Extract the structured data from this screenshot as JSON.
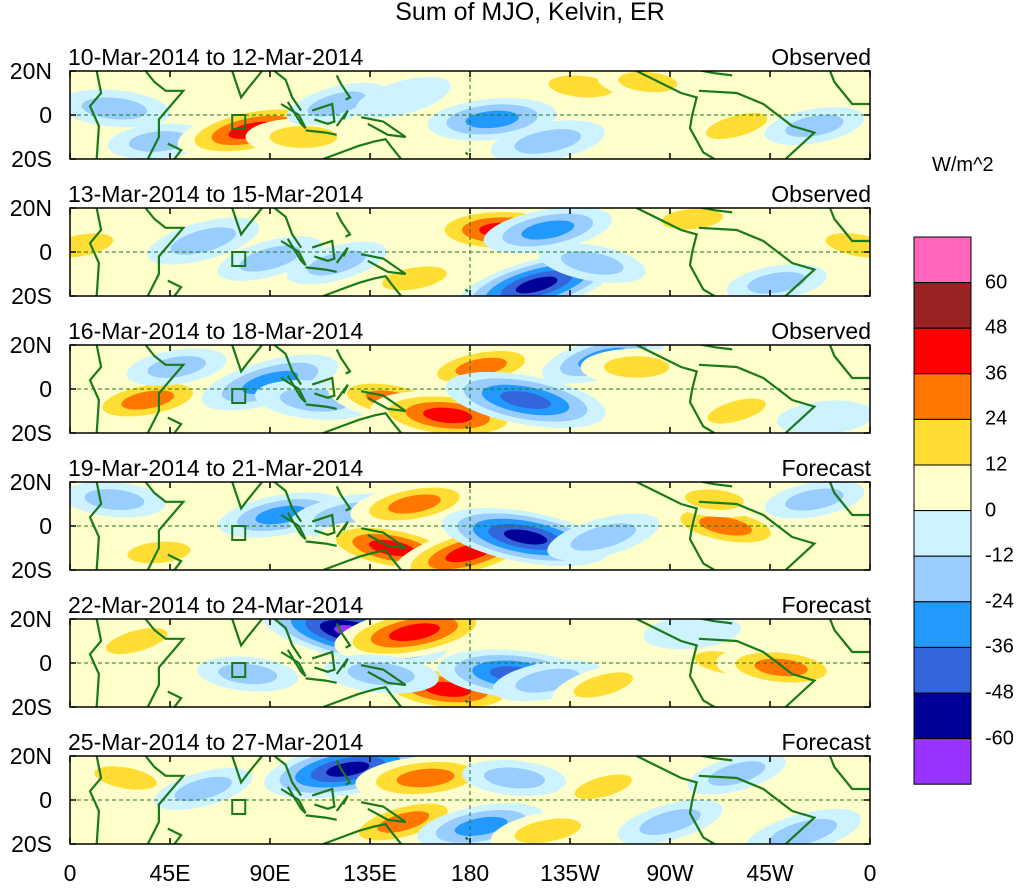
{
  "title": "Sum of MJO, Kelvin, ER",
  "units": "W/m^2",
  "colorbar": {
    "colors": [
      "#9933ff",
      "#000099",
      "#3366dd",
      "#2299ff",
      "#99ccff",
      "#ccf3ff",
      "#ffffcc",
      "#ffdd33",
      "#ff7700",
      "#ff0000",
      "#992222",
      "#ff66bb"
    ],
    "labels": [
      "-60",
      "-48",
      "-36",
      "-24",
      "-12",
      "0",
      "12",
      "24",
      "36",
      "48",
      "60"
    ]
  },
  "chart_data": {
    "type": "heatmap",
    "title": "Sum of MJO, Kelvin, ER",
    "colorbar_label": "W/m^2",
    "x_ticks": [
      "0",
      "45E",
      "90E",
      "135E",
      "180",
      "135W",
      "90W",
      "45W",
      "0"
    ],
    "y_ticks": [
      "20N",
      "0",
      "20S"
    ],
    "xlim": [
      0,
      360
    ],
    "ylim": [
      -20,
      20
    ],
    "levels": [
      -60,
      -48,
      -36,
      -24,
      -12,
      0,
      12,
      24,
      36,
      48,
      60
    ],
    "panels": [
      {
        "period": "10-Mar-2014 to 12-Mar-2014",
        "status": "Observed",
        "anomalies": [
          {
            "lon": 20,
            "lat": 3,
            "value": -20
          },
          {
            "lon": 40,
            "lat": -12,
            "value": -15
          },
          {
            "lon": 82,
            "lat": -7,
            "value": 42
          },
          {
            "lon": 105,
            "lat": -10,
            "value": 22
          },
          {
            "lon": 120,
            "lat": 5,
            "value": -15
          },
          {
            "lon": 150,
            "lat": 8,
            "value": -12
          },
          {
            "lon": 190,
            "lat": -2,
            "value": -30
          },
          {
            "lon": 215,
            "lat": -12,
            "value": -22
          },
          {
            "lon": 230,
            "lat": 13,
            "value": 20
          },
          {
            "lon": 260,
            "lat": 15,
            "value": 14
          },
          {
            "lon": 300,
            "lat": -5,
            "value": 18
          },
          {
            "lon": 335,
            "lat": -5,
            "value": -14
          }
        ]
      },
      {
        "period": "13-Mar-2014 to 15-Mar-2014",
        "status": "Observed",
        "anomalies": [
          {
            "lon": 5,
            "lat": 3,
            "value": 20
          },
          {
            "lon": 60,
            "lat": 5,
            "value": -22
          },
          {
            "lon": 90,
            "lat": -3,
            "value": -18
          },
          {
            "lon": 120,
            "lat": -5,
            "value": -15
          },
          {
            "lon": 155,
            "lat": -12,
            "value": 20
          },
          {
            "lon": 195,
            "lat": 10,
            "value": 42
          },
          {
            "lon": 215,
            "lat": 10,
            "value": -30
          },
          {
            "lon": 210,
            "lat": -15,
            "value": -50
          },
          {
            "lon": 235,
            "lat": -5,
            "value": -18
          },
          {
            "lon": 280,
            "lat": 15,
            "value": 16
          },
          {
            "lon": 318,
            "lat": -14,
            "value": -14
          },
          {
            "lon": 355,
            "lat": 3,
            "value": 22
          }
        ]
      },
      {
        "period": "16-Mar-2014 to 18-Mar-2014",
        "status": "Observed",
        "anomalies": [
          {
            "lon": 35,
            "lat": -5,
            "value": 30
          },
          {
            "lon": 48,
            "lat": 10,
            "value": -14
          },
          {
            "lon": 90,
            "lat": 3,
            "value": -36
          },
          {
            "lon": 110,
            "lat": -5,
            "value": -24
          },
          {
            "lon": 145,
            "lat": -5,
            "value": 30
          },
          {
            "lon": 170,
            "lat": -12,
            "value": 44
          },
          {
            "lon": 185,
            "lat": 10,
            "value": 28
          },
          {
            "lon": 205,
            "lat": -5,
            "value": -48
          },
          {
            "lon": 240,
            "lat": 14,
            "value": -28
          },
          {
            "lon": 255,
            "lat": 10,
            "value": 20
          },
          {
            "lon": 300,
            "lat": -10,
            "value": 15
          },
          {
            "lon": 340,
            "lat": -13,
            "value": -12
          }
        ]
      },
      {
        "period": "19-Mar-2014 to 21-Mar-2014",
        "status": "Forecast",
        "anomalies": [
          {
            "lon": 20,
            "lat": 12,
            "value": -15
          },
          {
            "lon": 40,
            "lat": -12,
            "value": 18
          },
          {
            "lon": 95,
            "lat": 5,
            "value": -28
          },
          {
            "lon": 125,
            "lat": 5,
            "value": -24
          },
          {
            "lon": 145,
            "lat": -10,
            "value": 40
          },
          {
            "lon": 155,
            "lat": 10,
            "value": 30
          },
          {
            "lon": 180,
            "lat": -12,
            "value": 46
          },
          {
            "lon": 205,
            "lat": -5,
            "value": -52
          },
          {
            "lon": 240,
            "lat": -5,
            "value": -22
          },
          {
            "lon": 295,
            "lat": 0,
            "value": 30
          },
          {
            "lon": 290,
            "lat": 12,
            "value": 14
          },
          {
            "lon": 335,
            "lat": 12,
            "value": -14
          }
        ]
      },
      {
        "period": "22-Mar-2014 to 24-Mar-2014",
        "status": "Forecast",
        "anomalies": [
          {
            "lon": 30,
            "lat": 10,
            "value": 18
          },
          {
            "lon": 80,
            "lat": -5,
            "value": -14
          },
          {
            "lon": 128,
            "lat": 14,
            "value": -62
          },
          {
            "lon": 155,
            "lat": 14,
            "value": 48
          },
          {
            "lon": 170,
            "lat": -12,
            "value": 40
          },
          {
            "lon": 140,
            "lat": -5,
            "value": -22
          },
          {
            "lon": 200,
            "lat": -5,
            "value": -44
          },
          {
            "lon": 215,
            "lat": -8,
            "value": -20
          },
          {
            "lon": 240,
            "lat": -10,
            "value": 16
          },
          {
            "lon": 295,
            "lat": 0,
            "value": 18
          },
          {
            "lon": 320,
            "lat": -2,
            "value": 30
          },
          {
            "lon": 280,
            "lat": 14,
            "value": -12
          }
        ]
      },
      {
        "period": "25-Mar-2014 to 27-Mar-2014",
        "status": "Forecast",
        "anomalies": [
          {
            "lon": 25,
            "lat": 10,
            "value": 18
          },
          {
            "lon": 60,
            "lat": 5,
            "value": -14
          },
          {
            "lon": 125,
            "lat": 14,
            "value": -52
          },
          {
            "lon": 160,
            "lat": 10,
            "value": 36
          },
          {
            "lon": 150,
            "lat": -10,
            "value": 30
          },
          {
            "lon": 185,
            "lat": -12,
            "value": -30
          },
          {
            "lon": 200,
            "lat": 10,
            "value": -16
          },
          {
            "lon": 215,
            "lat": -14,
            "value": 22
          },
          {
            "lon": 240,
            "lat": 6,
            "value": 14
          },
          {
            "lon": 270,
            "lat": -10,
            "value": -18
          },
          {
            "lon": 300,
            "lat": 12,
            "value": -14
          },
          {
            "lon": 330,
            "lat": -15,
            "value": -24
          }
        ]
      }
    ]
  }
}
